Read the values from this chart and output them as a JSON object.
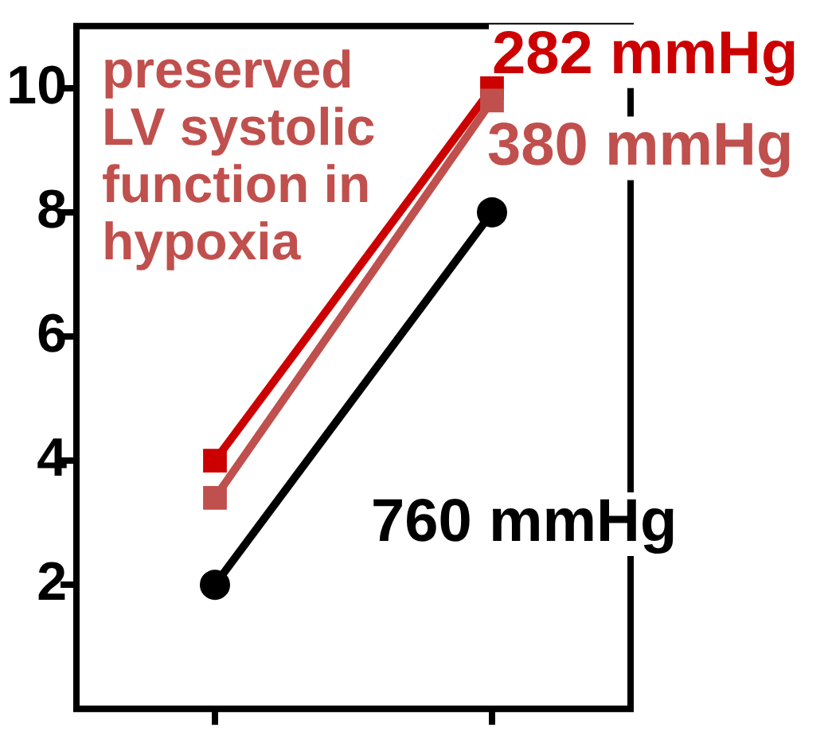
{
  "chart_data": {
    "type": "line",
    "categories": [
      null,
      null
    ],
    "series": [
      {
        "name": "282 mmHg",
        "color": "#cc0000",
        "values": [
          4,
          10
        ],
        "marker": "square"
      },
      {
        "name": "380 mmHg",
        "color": "#c0504d",
        "values": [
          3.4,
          9.8
        ],
        "marker": "square"
      },
      {
        "name": "760 mmHg",
        "color": "#000000",
        "values": [
          2,
          8
        ],
        "marker": "circle"
      }
    ],
    "ylim": [
      0,
      11
    ],
    "yticks": [
      2,
      4,
      6,
      8,
      10
    ],
    "annotations": [
      "preserved LV systolic function in hypoxia"
    ],
    "grid": false,
    "legend": false
  }
}
